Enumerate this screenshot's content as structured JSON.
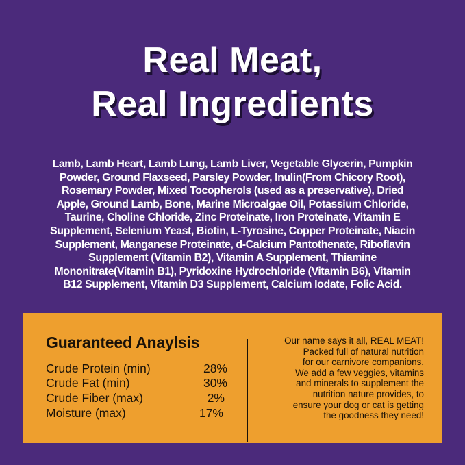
{
  "title": {
    "line1": "Real Meat,",
    "line2": "Real Ingredients"
  },
  "ingredients": [
    "Lamb, Lamb Heart, Lamb Lung, Lamb Liver, Vegetable Glycerin, Pumpkin",
    "Powder, Ground Flaxseed, Parsley Powder, Inulin(From Chicory Root),",
    "Rosemary Powder, Mixed Tocopherols (used as a preservative), Dried",
    "Apple, Ground Lamb, Bone, Marine Microalgae Oil, Potassium Chloride,",
    "Taurine, Choline Chloride, Zinc Proteinate, Iron Proteinate, Vitamin E",
    "Supplement, Selenium Yeast, Biotin, L-Tyrosine, Copper Proteinate, Niacin",
    "Supplement, Manganese Proteinate, d-Calcium Pantothenate, Riboflavin",
    "Supplement (Vitamin B2), Vitamin A Supplement, Thiamine",
    "Mononitrate(Vitamin B1), Pyridoxine Hydrochloride (Vitamin B6), Vitamin",
    "B12 Supplement, Vitamin D3 Supplement, Calcium Iodate, Folic Acid."
  ],
  "analysis": {
    "title": "Guaranteed Anaylsis",
    "rows": [
      {
        "label": "Crude Protein (min)",
        "value": "28%"
      },
      {
        "label": "Crude Fat (min)",
        "value": "30%"
      },
      {
        "label": "Crude Fiber (max)",
        "value": "2%"
      },
      {
        "label": "Moisture (max)",
        "value": "17%"
      }
    ]
  },
  "blurb": [
    "Our name says it all, REAL MEAT!",
    "Packed full of natural nutrition",
    "for our carnivore companions.",
    "We add a few veggies, vitamins",
    "and minerals to supplement the",
    "nutrition nature provides, to",
    "ensure your dog or cat is getting",
    "the goodness they need!"
  ],
  "colors": {
    "background": "#4b2a7b",
    "panel": "#ee9f2e",
    "text_dark": "#1a1208"
  }
}
